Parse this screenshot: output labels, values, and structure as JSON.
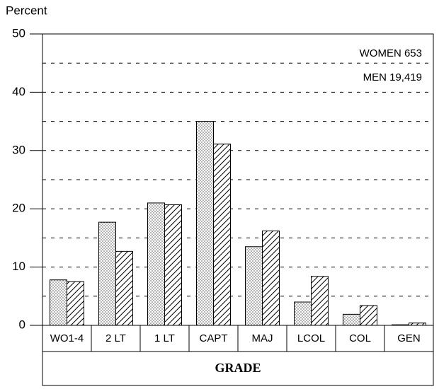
{
  "chart_data": {
    "type": "bar",
    "y_label": "Percent",
    "x_label": "GRADE",
    "categories": [
      "WO1-4",
      "2 LT",
      "1 LT",
      "CAPT",
      "MAJ",
      "LCOL",
      "COL",
      "GEN"
    ],
    "series": [
      {
        "name": "WOMEN 653",
        "pattern": "dots",
        "color": "#000000",
        "values": [
          7.8,
          17.7,
          21,
          35,
          13.5,
          4,
          1.9,
          0.1
        ]
      },
      {
        "name": "MEN 19,419",
        "pattern": "hatch",
        "color": "#000000",
        "values": [
          7.5,
          12.7,
          20.7,
          31.1,
          16.2,
          8.4,
          3.4,
          0.4
        ]
      }
    ],
    "ylim": [
      0,
      50
    ],
    "yticks": [
      0,
      10,
      20,
      30,
      40,
      50
    ],
    "minor_yticks": [
      5,
      15,
      25,
      35,
      45
    ],
    "grid": true
  }
}
